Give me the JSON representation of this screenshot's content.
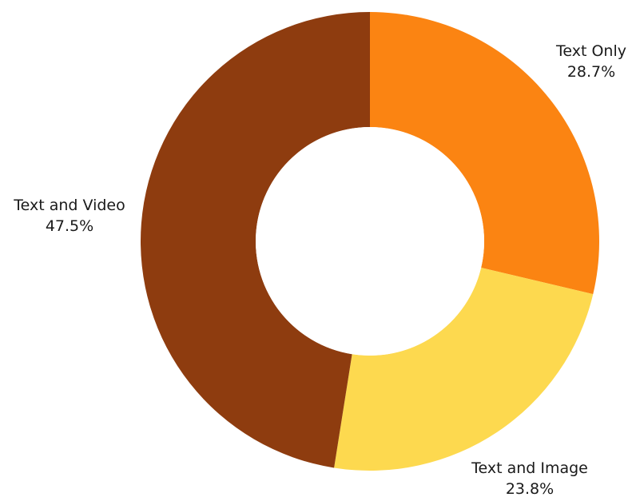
{
  "chart_data": {
    "type": "pie",
    "variant": "donut",
    "slices": [
      {
        "label": "Text Only",
        "value": 28.7,
        "value_label": "28.7%",
        "color": "#FB8412"
      },
      {
        "label": "Text and Image",
        "value": 23.8,
        "value_label": "23.8%",
        "color": "#FDD94F"
      },
      {
        "label": "Text and Video",
        "value": 47.5,
        "value_label": "47.5%",
        "color": "#8E3C0F"
      }
    ],
    "start_angle": "12 o'clock",
    "direction": "clockwise",
    "labels_outside": true
  }
}
